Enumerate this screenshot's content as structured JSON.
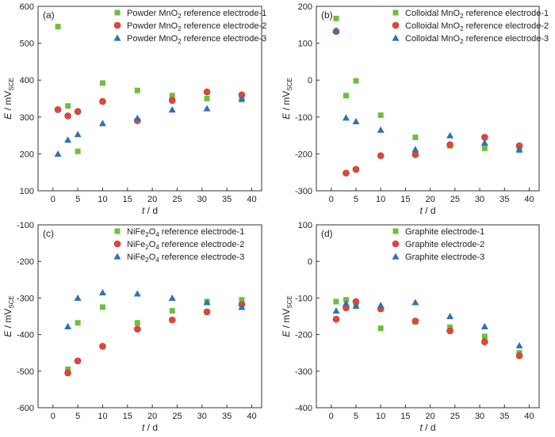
{
  "colors": {
    "series1": "#6cbf3f",
    "series2": "#e0473a",
    "series3": "#2f72b8"
  },
  "chart_data": [
    {
      "type": "scatter",
      "panel_label": "(a)",
      "xlabel": "t / d",
      "ylabel": "E / mV SCE",
      "xlim": [
        -3,
        42
      ],
      "ylim": [
        100,
        600
      ],
      "xticks": [
        0,
        5,
        10,
        15,
        20,
        25,
        30,
        35,
        40
      ],
      "yticks": [
        100,
        200,
        300,
        400,
        500,
        600
      ],
      "legend_position": "top-right",
      "series": [
        {
          "name": "Powder MnO2 reference electrode-1",
          "name_base": "Powder MnO",
          "name_sub": "2",
          "name_rest": " reference electrode-1",
          "marker": "square",
          "x": [
            1,
            3,
            5,
            10,
            17,
            24,
            31,
            38
          ],
          "y": [
            545,
            330,
            207,
            392,
            372,
            358,
            350,
            347
          ]
        },
        {
          "name": "Powder MnO2 reference electrode-2",
          "name_base": "Powder MnO",
          "name_sub": "2",
          "name_rest": " reference electrode-2",
          "marker": "circle",
          "x": [
            1,
            3,
            5,
            10,
            17,
            24,
            31,
            38
          ],
          "y": [
            320,
            303,
            315,
            342,
            290,
            345,
            368,
            360
          ]
        },
        {
          "name": "Powder MnO2 reference electrode-3",
          "name_base": "Powder MnO",
          "name_sub": "2",
          "name_rest": " reference electrode-3",
          "marker": "triangle",
          "x": [
            1,
            3,
            5,
            10,
            17,
            24,
            31,
            38
          ],
          "y": [
            200,
            238,
            253,
            283,
            297,
            320,
            323,
            350
          ]
        }
      ]
    },
    {
      "type": "scatter",
      "panel_label": "(b)",
      "xlabel": "t / d",
      "ylabel": "E / mV SCE",
      "xlim": [
        -3,
        42
      ],
      "ylim": [
        -300,
        200
      ],
      "xticks": [
        0,
        5,
        10,
        15,
        20,
        25,
        30,
        35,
        40
      ],
      "yticks": [
        -300,
        -200,
        -100,
        0,
        100,
        200
      ],
      "legend_position": "top-right",
      "series": [
        {
          "name": "Colloidal MnO2 reference electrode-1",
          "name_base": "Colloidal MnO",
          "name_sub": "2",
          "name_rest": " reference electrode-1",
          "marker": "square",
          "x": [
            1,
            3,
            5,
            10,
            17,
            24,
            31,
            38
          ],
          "y": [
            167,
            -42,
            -2,
            -95,
            -155,
            -178,
            -185,
            -190
          ]
        },
        {
          "name": "Colloidal MnO2 reference electrode-2",
          "name_base": "Colloidal MnO",
          "name_sub": "2",
          "name_rest": " reference electrode-2",
          "marker": "circle",
          "x": [
            1,
            3,
            5,
            10,
            17,
            24,
            31,
            38
          ],
          "y": [
            132,
            -252,
            -242,
            -205,
            -202,
            -175,
            -155,
            -178
          ]
        },
        {
          "name": "Colloidal MnO2 reference electrode-3",
          "name_base": "Colloidal MnO",
          "name_sub": "2",
          "name_rest": " reference electrode-3",
          "marker": "triangle",
          "x": [
            1,
            3,
            5,
            10,
            17,
            24,
            31,
            38
          ],
          "y": [
            135,
            -102,
            -112,
            -135,
            -188,
            -150,
            -170,
            -188
          ]
        }
      ]
    },
    {
      "type": "scatter",
      "panel_label": "(c)",
      "xlabel": "t / d",
      "ylabel": "E / mV SCE",
      "xlim": [
        -3,
        42
      ],
      "ylim": [
        -600,
        -100
      ],
      "xticks": [
        0,
        5,
        10,
        15,
        20,
        25,
        30,
        35,
        40
      ],
      "yticks": [
        -600,
        -500,
        -400,
        -300,
        -200,
        -100
      ],
      "legend_position": "top-right",
      "series": [
        {
          "name": "NiFe2O4 reference electrode-1",
          "name_base": "NiFe",
          "name_sub": "2",
          "name_mid": "O",
          "name_sub2": "4",
          "name_rest": " reference electrode-1",
          "marker": "square",
          "x": [
            3,
            5,
            10,
            17,
            24,
            31,
            38
          ],
          "y": [
            -495,
            -368,
            -325,
            -368,
            -335,
            -310,
            -305
          ]
        },
        {
          "name": "NiFe2O4 reference electrode-2",
          "name_base": "NiFe",
          "name_sub": "2",
          "name_mid": "O",
          "name_sub2": "4",
          "name_rest": " reference electrode-2",
          "marker": "circle",
          "x": [
            3,
            5,
            10,
            17,
            24,
            31,
            38
          ],
          "y": [
            -505,
            -472,
            -432,
            -385,
            -360,
            -338,
            -318
          ]
        },
        {
          "name": "NiFe2O4 reference electrode-3",
          "name_base": "NiFe",
          "name_sub": "2",
          "name_mid": "O",
          "name_sub2": "4",
          "name_rest": " reference electrode-3",
          "marker": "triangle",
          "x": [
            3,
            5,
            10,
            17,
            24,
            31,
            38
          ],
          "y": [
            -378,
            -300,
            -285,
            -288,
            -300,
            -312,
            -325
          ]
        }
      ]
    },
    {
      "type": "scatter",
      "panel_label": "(d)",
      "xlabel": "t / d",
      "ylabel": "E / mV SCE",
      "xlim": [
        -3,
        42
      ],
      "ylim": [
        -400,
        100
      ],
      "xticks": [
        0,
        5,
        10,
        15,
        20,
        25,
        30,
        35,
        40
      ],
      "yticks": [
        -400,
        -300,
        -200,
        -100,
        0,
        100
      ],
      "legend_position": "top-right",
      "series": [
        {
          "name": "Graphite electrode-1",
          "name_base": "Graphite electrode-1",
          "marker": "square",
          "x": [
            1,
            3,
            5,
            10,
            17,
            24,
            31,
            38
          ],
          "y": [
            -110,
            -105,
            -120,
            -183,
            -165,
            -180,
            -205,
            -250
          ]
        },
        {
          "name": "Graphite electrode-2",
          "name_base": "Graphite electrode-2",
          "marker": "circle",
          "x": [
            1,
            3,
            5,
            10,
            17,
            24,
            31,
            38
          ],
          "y": [
            -158,
            -127,
            -110,
            -130,
            -163,
            -190,
            -220,
            -258
          ]
        },
        {
          "name": "Graphite electrode-3",
          "name_base": "Graphite electrode-3",
          "marker": "triangle",
          "x": [
            1,
            3,
            5,
            10,
            17,
            24,
            31,
            38
          ],
          "y": [
            -135,
            -115,
            -122,
            -120,
            -112,
            -150,
            -178,
            -230
          ]
        }
      ]
    }
  ]
}
